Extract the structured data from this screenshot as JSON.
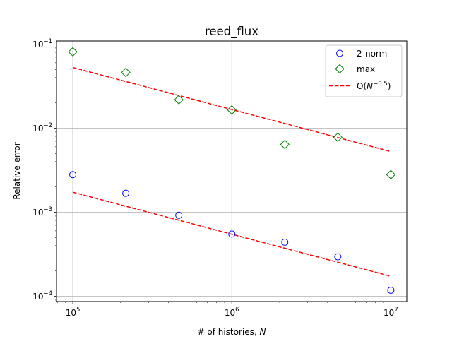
{
  "chart_data": {
    "type": "scatter",
    "title": "reed_flux",
    "xlabel": "# of histories, ",
    "xlabel_var": "N",
    "ylabel": "Relative error",
    "xscale": "log",
    "yscale": "log",
    "xlim": [
      79000,
      12600000
    ],
    "ylim": [
      8.65e-05,
      0.109
    ],
    "grid": true,
    "legend_position": "top-right",
    "x_ticks": [
      {
        "value": 100000,
        "base": "10",
        "exp": "5"
      },
      {
        "value": 1000000,
        "base": "10",
        "exp": "6"
      },
      {
        "value": 10000000,
        "base": "10",
        "exp": "7"
      }
    ],
    "y_ticks": [
      {
        "value": 0.0001,
        "base": "10",
        "exp": "−4"
      },
      {
        "value": 0.001,
        "base": "10",
        "exp": "−3"
      },
      {
        "value": 0.01,
        "base": "10",
        "exp": "−2"
      },
      {
        "value": 0.1,
        "base": "10",
        "exp": "−1"
      }
    ],
    "x": [
      100000,
      215443,
      464159,
      1000000,
      2154435,
      4641589,
      10000000
    ],
    "series": [
      {
        "name": "2-norm",
        "marker": "circle",
        "color": "#0000ff",
        "values": [
          0.0028,
          0.00168,
          0.00092,
          0.00055,
          0.00044,
          0.000295,
          0.000118
        ]
      },
      {
        "name": "max",
        "marker": "diamond",
        "color": "#008000",
        "values": [
          0.081,
          0.046,
          0.0218,
          0.0165,
          0.0064,
          0.0078,
          0.0028
        ]
      }
    ],
    "reference_lines": [
      {
        "name": "O(N^-0.5)",
        "label_prefix": "O(",
        "label_var": "N",
        "label_exp": "−0.5",
        "label_suffix": ")",
        "style": "dashed",
        "color": "#ff0000",
        "fits": [
          {
            "x": [
              100000,
              10000000
            ],
            "y": [
              0.0527,
              0.00527
            ]
          },
          {
            "x": [
              100000,
              10000000
            ],
            "y": [
              0.00173,
              0.000173
            ]
          }
        ]
      }
    ]
  }
}
